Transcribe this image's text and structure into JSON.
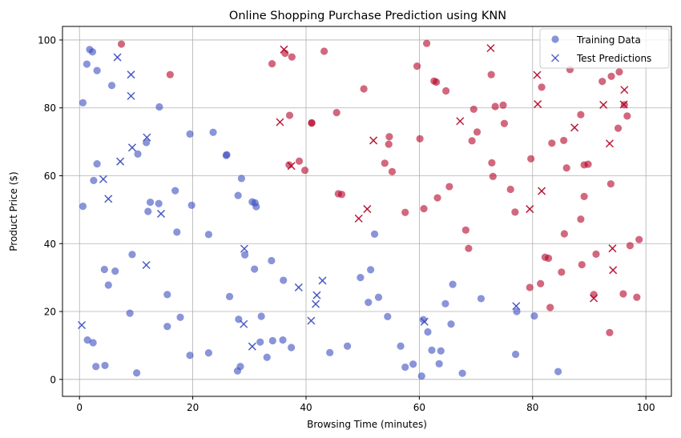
{
  "chart_data": {
    "type": "scatter",
    "title": "Online Shopping Purchase Prediction using KNN",
    "xlabel": "Browsing Time (minutes)",
    "ylabel": "Product Price ($)",
    "xlim": [
      -3,
      104.5
    ],
    "ylim": [
      -5,
      104
    ],
    "xticks": [
      0,
      20,
      40,
      60,
      80,
      100
    ],
    "yticks": [
      0,
      20,
      40,
      60,
      80,
      100
    ],
    "grid": true,
    "legend_position": "top-right",
    "colors": {
      "class_0": "#3b4cc0",
      "class_1": "#b40426"
    },
    "series": [
      {
        "name": "Training Data",
        "marker": "circle",
        "points": [
          [
            0.6,
            81.5,
            0
          ],
          [
            0.6,
            51,
            0
          ],
          [
            1.3,
            92.9,
            0
          ],
          [
            1.8,
            97.2,
            0
          ],
          [
            2.3,
            96.5,
            0
          ],
          [
            3.1,
            91,
            0
          ],
          [
            5.7,
            86.6,
            0
          ],
          [
            7.4,
            98.8,
            1
          ],
          [
            1.4,
            11.6,
            0
          ],
          [
            2.4,
            10.8,
            0
          ],
          [
            2.9,
            3.8,
            0
          ],
          [
            3.1,
            63.5,
            0
          ],
          [
            2.5,
            58.6,
            0
          ],
          [
            4.4,
            32.4,
            0
          ],
          [
            4.5,
            4.1,
            0
          ],
          [
            5.1,
            27.8,
            0
          ],
          [
            6.3,
            31.9,
            0
          ],
          [
            8.9,
            19.5,
            0
          ],
          [
            9.3,
            36.8,
            0
          ],
          [
            10.1,
            1.9,
            0
          ],
          [
            10.3,
            66.4,
            0
          ],
          [
            11.8,
            69.8,
            0
          ],
          [
            12.1,
            49.5,
            0
          ],
          [
            12.5,
            52.2,
            0
          ],
          [
            14,
            51.8,
            0
          ],
          [
            14.1,
            80.3,
            0
          ],
          [
            15.5,
            25,
            0
          ],
          [
            15.5,
            15.6,
            0
          ],
          [
            16,
            89.8,
            1
          ],
          [
            16.9,
            55.6,
            0
          ],
          [
            17.2,
            43.4,
            0
          ],
          [
            17.8,
            18.3,
            0
          ],
          [
            19.5,
            72.3,
            0
          ],
          [
            19.5,
            7.1,
            0
          ],
          [
            19.8,
            51.3,
            0
          ],
          [
            22.8,
            42.7,
            0
          ],
          [
            22.8,
            7.8,
            0
          ],
          [
            23.6,
            72.8,
            0
          ],
          [
            25.9,
            66,
            0
          ],
          [
            26,
            66.2,
            0
          ],
          [
            26.5,
            24.4,
            0
          ],
          [
            28,
            54.2,
            0
          ],
          [
            28.1,
            17.7,
            0
          ],
          [
            28.4,
            3.8,
            0
          ],
          [
            28.6,
            59.2,
            0
          ],
          [
            27.9,
            2.5,
            0
          ],
          [
            29.2,
            36.7,
            0
          ],
          [
            30.5,
            52.3,
            0
          ],
          [
            30.9,
            32.5,
            0
          ],
          [
            31.2,
            50.9,
            0
          ],
          [
            31,
            52,
            0
          ],
          [
            31.9,
            11,
            0
          ],
          [
            32.1,
            18.6,
            0
          ],
          [
            33.1,
            6.5,
            0
          ],
          [
            33.9,
            35,
            0
          ],
          [
            34.1,
            11.4,
            0
          ],
          [
            34,
            93,
            1
          ],
          [
            36,
            29.2,
            0
          ],
          [
            35.9,
            11.6,
            0
          ],
          [
            36.3,
            96.1,
            1
          ],
          [
            37,
            63.2,
            1
          ],
          [
            37.1,
            77.8,
            1
          ],
          [
            37.4,
            9.4,
            0
          ],
          [
            37.5,
            95,
            1
          ],
          [
            38.8,
            64.3,
            1
          ],
          [
            39.8,
            61.6,
            1
          ],
          [
            41,
            75.6,
            1
          ],
          [
            41,
            75.5,
            1
          ],
          [
            43.2,
            96.7,
            1
          ],
          [
            44.2,
            7.9,
            0
          ],
          [
            45.4,
            78.6,
            1
          ],
          [
            45.7,
            54.7,
            1
          ],
          [
            46.3,
            54.5,
            1
          ],
          [
            47.3,
            9.8,
            0
          ],
          [
            49.6,
            30,
            0
          ],
          [
            50.2,
            85.6,
            1
          ],
          [
            51,
            22.7,
            0
          ],
          [
            51.4,
            32.3,
            0
          ],
          [
            52.1,
            42.8,
            0
          ],
          [
            52.8,
            24.2,
            0
          ],
          [
            53.9,
            63.7,
            1
          ],
          [
            54.4,
            18.5,
            0
          ],
          [
            54.6,
            69.3,
            1
          ],
          [
            54.7,
            71.5,
            1
          ],
          [
            55.2,
            61.2,
            1
          ],
          [
            56.7,
            9.8,
            0
          ],
          [
            57.5,
            49.2,
            1
          ],
          [
            57.5,
            3.6,
            0
          ],
          [
            58.9,
            4.5,
            0
          ],
          [
            59.6,
            92.3,
            1
          ],
          [
            60.1,
            70.9,
            1
          ],
          [
            60.4,
            1,
            0
          ],
          [
            60.7,
            17.6,
            0
          ],
          [
            60.8,
            50.3,
            1
          ],
          [
            61.3,
            99,
            1
          ],
          [
            61.5,
            14,
            0
          ],
          [
            62.2,
            8.6,
            0
          ],
          [
            62.6,
            87.9,
            1
          ],
          [
            63,
            87.6,
            1
          ],
          [
            63.2,
            53.5,
            1
          ],
          [
            63.5,
            4.6,
            0
          ],
          [
            63.8,
            8.4,
            0
          ],
          [
            64.6,
            22.3,
            0
          ],
          [
            64.7,
            85,
            1
          ],
          [
            65.3,
            56.8,
            1
          ],
          [
            65.6,
            16.3,
            0
          ],
          [
            65.9,
            28,
            0
          ],
          [
            67.6,
            1.8,
            0
          ],
          [
            68.2,
            44,
            1
          ],
          [
            68.7,
            38.6,
            1
          ],
          [
            69.3,
            70.3,
            1
          ],
          [
            69.6,
            79.6,
            1
          ],
          [
            70.2,
            72.9,
            1
          ],
          [
            70.9,
            23.8,
            0
          ],
          [
            72.7,
            89.8,
            1
          ],
          [
            72.8,
            63.8,
            1
          ],
          [
            73,
            59.8,
            1
          ],
          [
            73.4,
            80.4,
            1
          ],
          [
            74.8,
            80.8,
            1
          ],
          [
            75,
            75.4,
            1
          ],
          [
            76.1,
            56,
            1
          ],
          [
            76.9,
            49.3,
            1
          ],
          [
            77,
            7.4,
            0
          ],
          [
            77.2,
            20,
            0
          ],
          [
            79.5,
            27.1,
            1
          ],
          [
            79.7,
            65,
            1
          ],
          [
            80.3,
            18.7,
            0
          ],
          [
            81.4,
            28.2,
            1
          ],
          [
            81.6,
            86.1,
            1
          ],
          [
            82.2,
            36,
            1
          ],
          [
            82.8,
            35.7,
            1
          ],
          [
            83.1,
            21.2,
            1
          ],
          [
            83.4,
            69.6,
            1
          ],
          [
            84.5,
            2.3,
            0
          ],
          [
            85.1,
            31.6,
            1
          ],
          [
            85.5,
            70.4,
            1
          ],
          [
            85.6,
            42.9,
            1
          ],
          [
            86,
            62.3,
            1
          ],
          [
            86.6,
            91.3,
            1
          ],
          [
            88.5,
            78,
            1
          ],
          [
            88.5,
            47.2,
            1
          ],
          [
            88.7,
            33.8,
            1
          ],
          [
            89.1,
            53.9,
            1
          ],
          [
            89.1,
            63.2,
            1
          ],
          [
            89.8,
            63.4,
            1
          ],
          [
            90.8,
            25,
            1
          ],
          [
            91.2,
            36.9,
            1
          ],
          [
            92.3,
            87.8,
            1
          ],
          [
            93.6,
            13.8,
            1
          ],
          [
            93.8,
            57.6,
            1
          ],
          [
            93.9,
            89.3,
            1
          ],
          [
            95.1,
            74,
            1
          ],
          [
            95.3,
            90.6,
            1
          ],
          [
            96,
            25.2,
            1
          ],
          [
            96.2,
            80.9,
            1
          ],
          [
            97.2,
            39.4,
            1
          ],
          [
            96.7,
            77.6,
            1
          ],
          [
            98.4,
            24.2,
            1
          ],
          [
            98.8,
            41.2,
            1
          ]
        ]
      },
      {
        "name": "Test Predictions",
        "marker": "x",
        "points": [
          [
            0.4,
            16,
            0
          ],
          [
            4.2,
            59,
            0
          ],
          [
            5.1,
            53.2,
            0
          ],
          [
            6.7,
            94.9,
            0
          ],
          [
            7.2,
            64.2,
            0
          ],
          [
            9.1,
            89.8,
            0
          ],
          [
            9.3,
            68.3,
            0
          ],
          [
            9.1,
            83.5,
            0
          ],
          [
            11.8,
            33.7,
            0
          ],
          [
            11.9,
            71.3,
            0
          ],
          [
            14.4,
            48.8,
            0
          ],
          [
            29.1,
            38.5,
            0
          ],
          [
            29,
            16.3,
            0
          ],
          [
            30.5,
            9.7,
            0
          ],
          [
            35.4,
            75.8,
            1
          ],
          [
            36.1,
            97.2,
            1
          ],
          [
            37.4,
            62.9,
            1
          ],
          [
            38.7,
            27.1,
            0
          ],
          [
            40.9,
            17.3,
            0
          ],
          [
            41.7,
            22.2,
            0
          ],
          [
            41.9,
            24.8,
            0
          ],
          [
            42.9,
            29.1,
            0
          ],
          [
            49.3,
            47.4,
            1
          ],
          [
            50.8,
            50.2,
            1
          ],
          [
            51.9,
            70.4,
            1
          ],
          [
            60.9,
            17,
            0
          ],
          [
            67.2,
            76.1,
            1
          ],
          [
            72.6,
            97.6,
            1
          ],
          [
            77.1,
            21.6,
            0
          ],
          [
            79.5,
            50.2,
            1
          ],
          [
            80.8,
            89.7,
            1
          ],
          [
            80.9,
            81.1,
            1
          ],
          [
            81.6,
            55.5,
            1
          ],
          [
            87.4,
            74.2,
            1
          ],
          [
            90.8,
            23.9,
            1
          ],
          [
            92.5,
            80.9,
            1
          ],
          [
            93.6,
            69.5,
            1
          ],
          [
            94.1,
            38.6,
            1
          ],
          [
            94.2,
            32.2,
            1
          ],
          [
            96.2,
            85.3,
            1
          ],
          [
            96.1,
            81,
            1
          ]
        ]
      }
    ]
  }
}
